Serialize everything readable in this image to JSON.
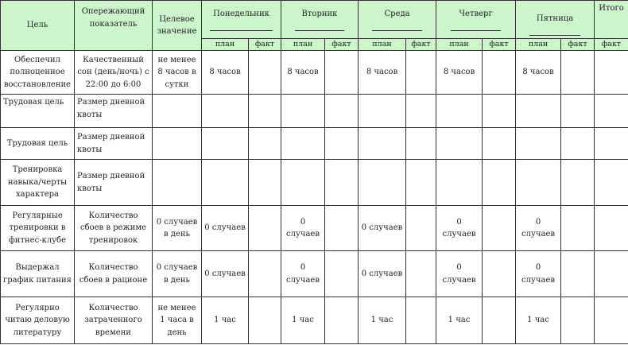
{
  "header": {
    "goal": "Цель",
    "leading": "Опережающий показатель",
    "target": "Целевое значение",
    "days": [
      "Понедельник",
      "Вторник",
      "Среда",
      "Четверг",
      "Пятница"
    ],
    "total": "Итого",
    "plan": "план",
    "fact": "факт"
  },
  "rows": [
    {
      "goal": "Обеспечил полноценное восстановление",
      "leading": "Качественный сон (день/ночь) с 22:00 до 6:00",
      "target": "не менее 8 часов в сутки",
      "plan": "8 часов"
    },
    {
      "goal": "Трудовая цель",
      "leading": "Размер дневной квоты",
      "target": "",
      "plan": ""
    },
    {
      "goal": "Трудовая цель",
      "leading": "Размер дневной квоты",
      "target": "",
      "plan": ""
    },
    {
      "goal": "Тренировка навыка/черты характера",
      "leading": "Размер дневной квоты",
      "target": "",
      "plan": ""
    },
    {
      "goal": "Регулярные тренировки в фитнес-клубе",
      "leading": "Количество сбоев в режиме тренировок",
      "target": "0 случаев в день",
      "plan": "0 случаев"
    },
    {
      "goal": "Выдержал график питания",
      "leading": "Количество сбоев в рационе",
      "target": "0 случаев в день",
      "plan": "0 случаев"
    },
    {
      "goal": "Регулярно читаю деловую литературу",
      "leading": "Количество затраченного времени",
      "target": "не менее 1 часа в день",
      "plan": "1 час"
    }
  ],
  "colors": {
    "header_bg": "#ccf5cc",
    "border": "#333333"
  }
}
